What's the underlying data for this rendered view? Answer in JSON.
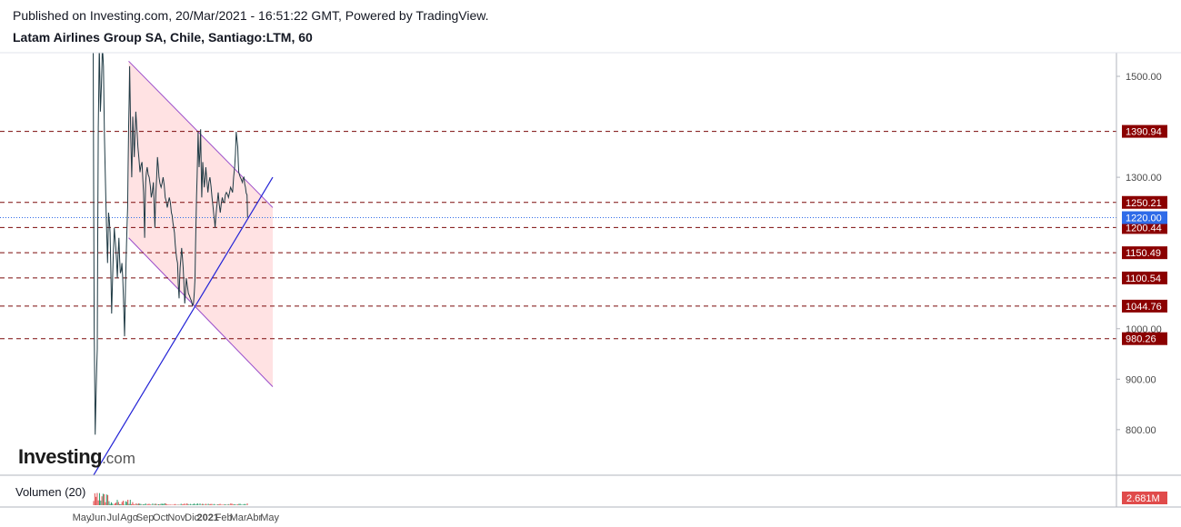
{
  "header": {
    "published": "Published on Investing.com, 20/Mar/2021 - 16:51:22 GMT, Powered by TradingView.",
    "instrument": "Latam Airlines Group SA, Chile, Santiago:LTM, 60"
  },
  "logo": {
    "main": "Investing",
    "suffix": ".com"
  },
  "volume": {
    "label": "Volumen (20)",
    "badge": "2.681M"
  },
  "colors": {
    "price": "#1f3a44",
    "channel_fill": "#ffdfe0",
    "channel_line": "#9b4dca",
    "trend_line": "#2323d6",
    "level_line": "#7b0a0a",
    "badge": "#8b0000",
    "current_badge": "#2f6be8",
    "volume_up": "#2e9e6e",
    "volume_down": "#e04b4b"
  },
  "chart_data": {
    "type": "line",
    "title": "Latam Airlines Group SA, Chile, Santiago:LTM, 60",
    "y_ticks": [
      800,
      900,
      1000,
      1300,
      1500
    ],
    "y_tick_labels": [
      "800.00",
      "900.00",
      "1000.00",
      "1300.00",
      "1500.00"
    ],
    "x_ticks": [
      "May",
      "Jun",
      "Jul",
      "Ago",
      "Sep",
      "Oct",
      "Nov",
      "Dic",
      "2021",
      "Feb",
      "Mar",
      "Abr",
      "May"
    ],
    "levels": [
      {
        "value": 1390.94,
        "label": "1390.94"
      },
      {
        "value": 1250.21,
        "label": "1250.21"
      },
      {
        "value": 1200.44,
        "label": "1200.44"
      },
      {
        "value": 1150.49,
        "label": "1150.49"
      },
      {
        "value": 1100.54,
        "label": "1100.54"
      },
      {
        "value": 1044.76,
        "label": "1044.76"
      },
      {
        "value": 980.26,
        "label": "980.26"
      }
    ],
    "current_price": {
      "value": 1220.0,
      "label": "1220.00"
    },
    "price_series": [
      {
        "x": "2020-05-23",
        "y": 1560
      },
      {
        "x": "2020-05-25",
        "y": 1000
      },
      {
        "x": "2020-05-27",
        "y": 790
      },
      {
        "x": "2020-05-29",
        "y": 880
      },
      {
        "x": "2020-05-31",
        "y": 960
      },
      {
        "x": "2020-06-02",
        "y": 1400
      },
      {
        "x": "2020-06-04",
        "y": 1560
      },
      {
        "x": "2020-06-06",
        "y": 1430
      },
      {
        "x": "2020-06-08",
        "y": 1480
      },
      {
        "x": "2020-06-10",
        "y": 1560
      },
      {
        "x": "2020-06-12",
        "y": 1520
      },
      {
        "x": "2020-06-14",
        "y": 1380
      },
      {
        "x": "2020-06-16",
        "y": 1290
      },
      {
        "x": "2020-06-18",
        "y": 1200
      },
      {
        "x": "2020-06-20",
        "y": 1130
      },
      {
        "x": "2020-06-22",
        "y": 1230
      },
      {
        "x": "2020-06-25",
        "y": 1190
      },
      {
        "x": "2020-06-28",
        "y": 1030
      },
      {
        "x": "2020-07-01",
        "y": 1140
      },
      {
        "x": "2020-07-03",
        "y": 1200
      },
      {
        "x": "2020-07-06",
        "y": 1160
      },
      {
        "x": "2020-07-09",
        "y": 1100
      },
      {
        "x": "2020-07-12",
        "y": 1180
      },
      {
        "x": "2020-07-15",
        "y": 1110
      },
      {
        "x": "2020-07-18",
        "y": 1130
      },
      {
        "x": "2020-07-21",
        "y": 1060
      },
      {
        "x": "2020-07-23",
        "y": 985
      },
      {
        "x": "2020-07-25",
        "y": 1090
      },
      {
        "x": "2020-07-27",
        "y": 1170
      },
      {
        "x": "2020-07-29",
        "y": 1240
      },
      {
        "x": "2020-07-31",
        "y": 1400
      },
      {
        "x": "2020-08-02",
        "y": 1520
      },
      {
        "x": "2020-08-04",
        "y": 1380
      },
      {
        "x": "2020-08-06",
        "y": 1300
      },
      {
        "x": "2020-08-08",
        "y": 1420
      },
      {
        "x": "2020-08-11",
        "y": 1340
      },
      {
        "x": "2020-08-14",
        "y": 1430
      },
      {
        "x": "2020-08-18",
        "y": 1360
      },
      {
        "x": "2020-08-22",
        "y": 1310
      },
      {
        "x": "2020-08-26",
        "y": 1330
      },
      {
        "x": "2020-08-29",
        "y": 1270
      },
      {
        "x": "2020-08-31",
        "y": 1180
      },
      {
        "x": "2020-09-02",
        "y": 1290
      },
      {
        "x": "2020-09-05",
        "y": 1320
      },
      {
        "x": "2020-09-09",
        "y": 1300
      },
      {
        "x": "2020-09-13",
        "y": 1260
      },
      {
        "x": "2020-09-17",
        "y": 1290
      },
      {
        "x": "2020-09-20",
        "y": 1200
      },
      {
        "x": "2020-09-22",
        "y": 1270
      },
      {
        "x": "2020-09-25",
        "y": 1340
      },
      {
        "x": "2020-09-28",
        "y": 1300
      },
      {
        "x": "2020-10-02",
        "y": 1280
      },
      {
        "x": "2020-10-06",
        "y": 1300
      },
      {
        "x": "2020-10-10",
        "y": 1260
      },
      {
        "x": "2020-10-14",
        "y": 1240
      },
      {
        "x": "2020-10-18",
        "y": 1260
      },
      {
        "x": "2020-10-22",
        "y": 1230
      },
      {
        "x": "2020-10-25",
        "y": 1210
      },
      {
        "x": "2020-10-28",
        "y": 1190
      },
      {
        "x": "2020-10-31",
        "y": 1150
      },
      {
        "x": "2020-11-03",
        "y": 1130
      },
      {
        "x": "2020-11-06",
        "y": 1060
      },
      {
        "x": "2020-11-08",
        "y": 1120
      },
      {
        "x": "2020-11-11",
        "y": 1160
      },
      {
        "x": "2020-11-14",
        "y": 1120
      },
      {
        "x": "2020-11-17",
        "y": 1050
      },
      {
        "x": "2020-11-20",
        "y": 1100
      },
      {
        "x": "2020-11-24",
        "y": 1070
      },
      {
        "x": "2020-11-28",
        "y": 1060
      },
      {
        "x": "2020-12-02",
        "y": 1045
      },
      {
        "x": "2020-12-04",
        "y": 1050
      },
      {
        "x": "2020-12-07",
        "y": 1100
      },
      {
        "x": "2020-12-09",
        "y": 1220
      },
      {
        "x": "2020-12-11",
        "y": 1300
      },
      {
        "x": "2020-12-13",
        "y": 1390
      },
      {
        "x": "2020-12-15",
        "y": 1320
      },
      {
        "x": "2020-12-18",
        "y": 1395
      },
      {
        "x": "2020-12-20",
        "y": 1260
      },
      {
        "x": "2020-12-22",
        "y": 1330
      },
      {
        "x": "2020-12-25",
        "y": 1280
      },
      {
        "x": "2020-12-28",
        "y": 1320
      },
      {
        "x": "2021-01-01",
        "y": 1270
      },
      {
        "x": "2021-01-05",
        "y": 1300
      },
      {
        "x": "2021-01-09",
        "y": 1260
      },
      {
        "x": "2021-01-13",
        "y": 1220
      },
      {
        "x": "2021-01-15",
        "y": 1200
      },
      {
        "x": "2021-01-18",
        "y": 1240
      },
      {
        "x": "2021-01-21",
        "y": 1270
      },
      {
        "x": "2021-01-25",
        "y": 1230
      },
      {
        "x": "2021-01-29",
        "y": 1260
      },
      {
        "x": "2021-02-02",
        "y": 1250
      },
      {
        "x": "2021-02-06",
        "y": 1270
      },
      {
        "x": "2021-02-10",
        "y": 1260
      },
      {
        "x": "2021-02-14",
        "y": 1280
      },
      {
        "x": "2021-02-18",
        "y": 1270
      },
      {
        "x": "2021-02-22",
        "y": 1320
      },
      {
        "x": "2021-02-25",
        "y": 1390
      },
      {
        "x": "2021-02-28",
        "y": 1360
      },
      {
        "x": "2021-03-02",
        "y": 1310
      },
      {
        "x": "2021-03-05",
        "y": 1300
      },
      {
        "x": "2021-03-09",
        "y": 1290
      },
      {
        "x": "2021-03-12",
        "y": 1300
      },
      {
        "x": "2021-03-15",
        "y": 1280
      },
      {
        "x": "2021-03-18",
        "y": 1265
      },
      {
        "x": "2021-03-19",
        "y": 1220
      }
    ],
    "channel": {
      "upper": [
        {
          "x": "2020-07-31",
          "y": 1530
        },
        {
          "x": "2021-05-07",
          "y": 1240
        }
      ],
      "lower": [
        {
          "x": "2020-07-31",
          "y": 1180
        },
        {
          "x": "2021-05-07",
          "y": 885
        }
      ]
    },
    "trend_line": [
      {
        "x": "2020-05-24",
        "y": 710
      },
      {
        "x": "2021-05-07",
        "y": 1300
      }
    ]
  }
}
